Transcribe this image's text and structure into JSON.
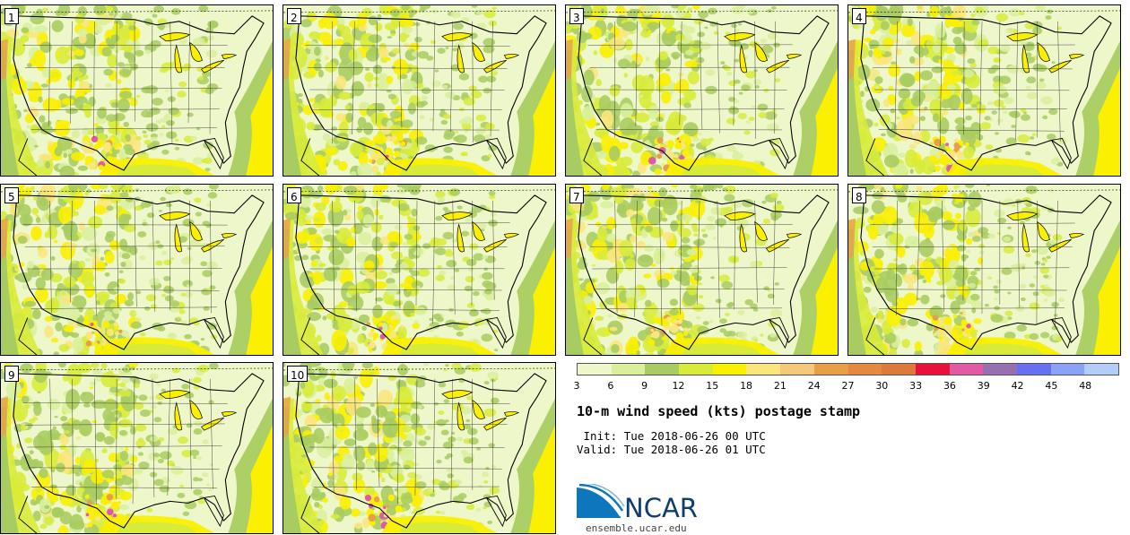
{
  "panels": [
    {
      "label": "1"
    },
    {
      "label": "2"
    },
    {
      "label": "3"
    },
    {
      "label": "4"
    },
    {
      "label": "5"
    },
    {
      "label": "6"
    },
    {
      "label": "7"
    },
    {
      "label": "8"
    },
    {
      "label": "9"
    },
    {
      "label": "10"
    }
  ],
  "colorbar": {
    "colors": [
      "#eef7c9",
      "#d9ef9e",
      "#a8cc61",
      "#d8eb3a",
      "#faf000",
      "#fae67d",
      "#f5c97a",
      "#e8a048",
      "#e48940",
      "#dc7a3c",
      "#e8103c",
      "#e05aa6",
      "#9670b0",
      "#6670f0",
      "#8aa2f8",
      "#b4ccf8"
    ],
    "ticks": [
      "3",
      "6",
      "9",
      "12",
      "15",
      "18",
      "21",
      "24",
      "27",
      "30",
      "33",
      "36",
      "39",
      "42",
      "45",
      "48"
    ]
  },
  "title": "10-m wind speed (kts) postage stamp",
  "init": " Init: Tue 2018-06-26 00 UTC",
  "valid": "Valid: Tue 2018-06-26 01 UTC",
  "logo": {
    "text": "NCAR",
    "icon": "ncar-logo-icon",
    "color": "#0f3d71"
  },
  "site_url": "ensemble.ucar.edu"
}
